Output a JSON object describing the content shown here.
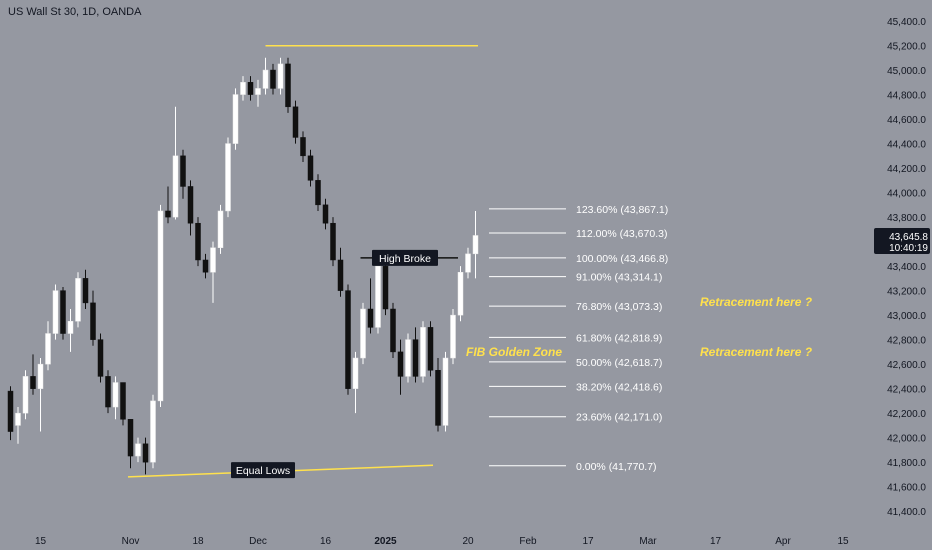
{
  "chart_data": {
    "type": "candlestick",
    "title": "US Wall St 30, 1D, OANDA",
    "colors": {
      "background": "#9598a1",
      "up": "#ffffff",
      "down": "#111111",
      "level_line": "#ffffff",
      "highlight": "#ffe14d",
      "text": "#131722",
      "label_box": "#131722"
    },
    "price_axis": {
      "ticks": [
        41400,
        41600,
        41800,
        42000,
        42200,
        42400,
        42600,
        42800,
        43000,
        43200,
        43400,
        43600,
        43800,
        44000,
        44200,
        44400,
        44600,
        44800,
        45000,
        45200,
        45400
      ],
      "tick_labels": [
        "41,400.0",
        "41,600.0",
        "41,800.0",
        "42,000.0",
        "42,200.0",
        "42,400.0",
        "42,600.0",
        "42,800.0",
        "43,000.0",
        "43,200.0",
        "43,400.0",
        "43,600.0",
        "43,800.0",
        "44,000.0",
        "44,200.0",
        "44,400.0",
        "44,600.0",
        "44,800.0",
        "45,000.0",
        "45,200.0",
        "45,400.0"
      ],
      "range": [
        41320,
        45490
      ]
    },
    "time_axis": {
      "labels": [
        "15",
        "Nov",
        "18",
        "Dec",
        "16",
        "2025",
        "20",
        "Feb",
        "17",
        "Mar",
        "17",
        "Apr",
        "15"
      ],
      "label_bars": [
        4,
        16,
        25,
        33,
        42,
        50,
        61,
        69,
        77,
        85,
        94,
        103,
        111
      ],
      "bold": [
        "2025"
      ]
    },
    "last_price": {
      "value": "43,645.8",
      "countdown": "10:40:19"
    },
    "fib_levels": [
      {
        "label": "123.60% (43,867.1)",
        "price": 43867.1
      },
      {
        "label": "112.00% (43,670.3)",
        "price": 43670.3
      },
      {
        "label": "100.00% (43,466.8)",
        "price": 43466.8
      },
      {
        "label": "91.00% (43,314.1)",
        "price": 43314.1
      },
      {
        "label": "76.80% (43,073.3)",
        "price": 43073.3
      },
      {
        "label": "61.80% (42,818.9)",
        "price": 42818.9
      },
      {
        "label": "50.00% (42,618.7)",
        "price": 42618.7
      },
      {
        "label": "38.20% (42,418.6)",
        "price": 42418.6
      },
      {
        "label": "23.60% (42,171.0)",
        "price": 42171.0
      },
      {
        "label": "0.00% (41,770.7)",
        "price": 41770.7
      }
    ],
    "annotations": {
      "high_broke": "High Broke",
      "equal_lows": "Equal Lows",
      "fib_zone": "FIB Golden Zone",
      "retracement_1": "Retracement here ?",
      "retracement_2": "Retracement here ?"
    },
    "candles": [
      [
        42380,
        42420,
        41980,
        42050
      ],
      [
        42100,
        42250,
        41950,
        42200
      ],
      [
        42200,
        42550,
        42150,
        42500
      ],
      [
        42500,
        42680,
        42350,
        42400
      ],
      [
        42400,
        42650,
        42050,
        42600
      ],
      [
        42600,
        42950,
        42550,
        42850
      ],
      [
        42850,
        43250,
        42800,
        43200
      ],
      [
        43200,
        43230,
        42800,
        42850
      ],
      [
        42850,
        43050,
        42700,
        42950
      ],
      [
        42950,
        43350,
        42900,
        43300
      ],
      [
        43300,
        43370,
        43050,
        43100
      ],
      [
        43100,
        43200,
        42750,
        42800
      ],
      [
        42800,
        42850,
        42450,
        42500
      ],
      [
        42500,
        42550,
        42200,
        42250
      ],
      [
        42250,
        42500,
        42150,
        42450
      ],
      [
        42450,
        42450,
        42100,
        42150
      ],
      [
        42150,
        42150,
        41750,
        41850
      ],
      [
        41850,
        42000,
        41800,
        41950
      ],
      [
        41950,
        42000,
        41700,
        41800
      ],
      [
        41800,
        42350,
        41750,
        42300
      ],
      [
        42300,
        43900,
        42250,
        43850
      ],
      [
        43850,
        44050,
        43750,
        43800
      ],
      [
        43800,
        44700,
        43780,
        44300
      ],
      [
        44300,
        44350,
        43950,
        44050
      ],
      [
        44050,
        44100,
        43650,
        43750
      ],
      [
        43750,
        43800,
        43400,
        43450
      ],
      [
        43450,
        43500,
        43300,
        43350
      ],
      [
        43350,
        43600,
        43100,
        43550
      ],
      [
        43550,
        43900,
        43500,
        43850
      ],
      [
        43850,
        44450,
        43800,
        44400
      ],
      [
        44400,
        44850,
        44350,
        44800
      ],
      [
        44800,
        44950,
        44750,
        44900
      ],
      [
        44900,
        44950,
        44750,
        44800
      ],
      [
        44800,
        44920,
        44700,
        44850
      ],
      [
        44850,
        45100,
        44800,
        45000
      ],
      [
        45000,
        45050,
        44800,
        44850
      ],
      [
        44850,
        45100,
        44800,
        45050
      ],
      [
        45050,
        45100,
        44650,
        44700
      ],
      [
        44700,
        44750,
        44400,
        44450
      ],
      [
        44450,
        44500,
        44250,
        44300
      ],
      [
        44300,
        44350,
        44050,
        44100
      ],
      [
        44100,
        44150,
        43850,
        43900
      ],
      [
        43900,
        43950,
        43700,
        43750
      ],
      [
        43750,
        43800,
        43400,
        43450
      ],
      [
        43450,
        43550,
        43150,
        43200
      ],
      [
        43200,
        43250,
        42350,
        42400
      ],
      [
        42400,
        42700,
        42200,
        42650
      ],
      [
        42650,
        43100,
        42600,
        43050
      ],
      [
        43050,
        43300,
        42850,
        42900
      ],
      [
        42900,
        43400,
        42850,
        43400
      ],
      [
        43400,
        43450,
        43000,
        43050
      ],
      [
        43050,
        43100,
        42650,
        42700
      ],
      [
        42700,
        42800,
        42350,
        42500
      ],
      [
        42500,
        42850,
        42450,
        42800
      ],
      [
        42800,
        42900,
        42450,
        42500
      ],
      [
        42500,
        42950,
        42450,
        42900
      ],
      [
        42900,
        42950,
        42500,
        42550
      ],
      [
        42550,
        42650,
        42050,
        42100
      ],
      [
        42100,
        42700,
        42050,
        42650
      ],
      [
        42650,
        43050,
        42600,
        43000
      ],
      [
        43000,
        43400,
        42950,
        43350
      ],
      [
        43350,
        43550,
        43300,
        43500
      ],
      [
        43500,
        43850,
        43300,
        43650
      ]
    ]
  }
}
